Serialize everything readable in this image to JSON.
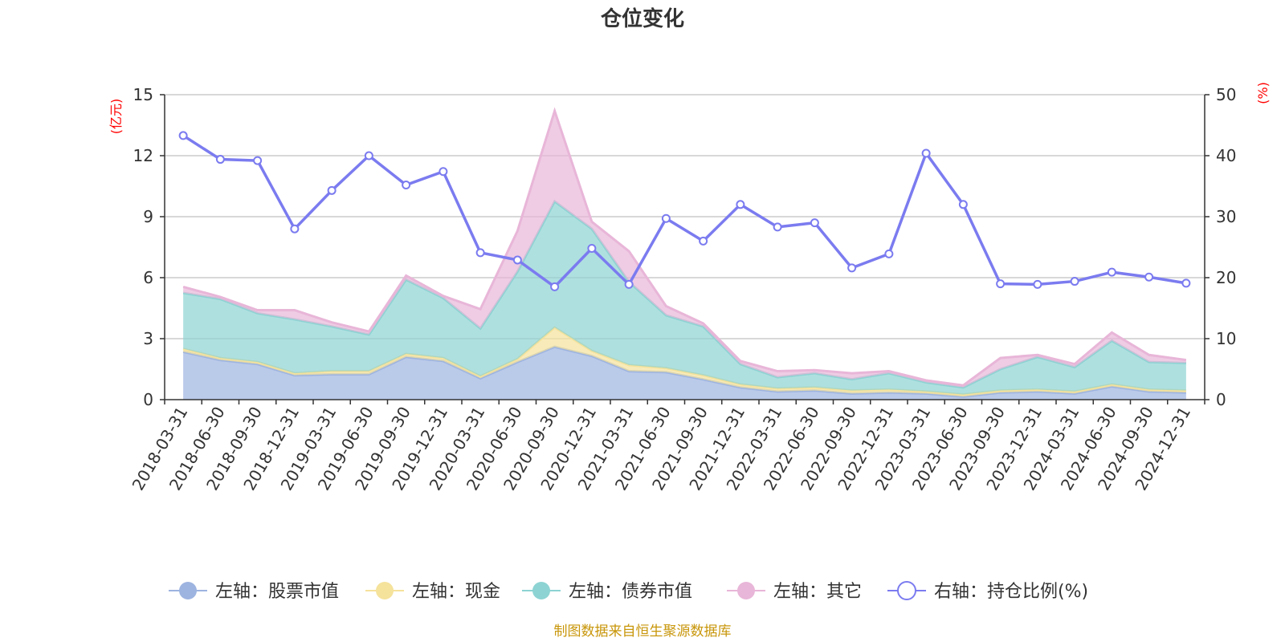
{
  "title": "仓位变化",
  "left_unit": "(亿元)",
  "right_unit": "(%)",
  "source": "制图数据来自恒生聚源数据库",
  "colors": {
    "stock": "#9db4e0",
    "cash": "#f5e29b",
    "bond": "#8dd3d3",
    "other": "#e8b6d8",
    "ratio": "#7b7bf0"
  },
  "chart_data": {
    "type": "area",
    "title": "仓位变化",
    "categories": [
      "2018-03-31",
      "2018-06-30",
      "2018-09-30",
      "2018-12-31",
      "2019-03-31",
      "2019-06-30",
      "2019-09-30",
      "2019-12-31",
      "2020-03-31",
      "2020-06-30",
      "2020-09-30",
      "2020-12-31",
      "2021-03-31",
      "2021-06-30",
      "2021-09-30",
      "2021-12-31",
      "2022-03-31",
      "2022-06-30",
      "2022-09-30",
      "2022-12-31",
      "2023-03-31",
      "2023-06-30",
      "2023-09-30",
      "2023-12-31",
      "2024-03-31",
      "2024-06-30",
      "2024-09-30",
      "2024-12-31"
    ],
    "left_axis": {
      "label": "(亿元)",
      "ylim": [
        0,
        15
      ],
      "ticks": [
        0,
        3,
        6,
        9,
        12,
        15
      ]
    },
    "right_axis": {
      "label": "(%)",
      "ylim": [
        0,
        50
      ],
      "ticks": [
        0,
        10,
        20,
        30,
        40,
        50
      ]
    },
    "series": [
      {
        "name": "左轴：股票市值",
        "key": "stock",
        "axis": "left",
        "type": "area",
        "values": [
          2.35,
          1.95,
          1.75,
          1.2,
          1.25,
          1.25,
          2.1,
          1.9,
          1.05,
          1.85,
          2.6,
          2.15,
          1.4,
          1.35,
          1.0,
          0.6,
          0.4,
          0.45,
          0.3,
          0.35,
          0.3,
          0.15,
          0.35,
          0.4,
          0.3,
          0.65,
          0.4,
          0.35
        ]
      },
      {
        "name": "左轴：现金",
        "key": "cash",
        "axis": "left",
        "type": "area",
        "values": [
          0.15,
          0.1,
          0.1,
          0.1,
          0.15,
          0.15,
          0.15,
          0.15,
          0.1,
          0.15,
          0.95,
          0.25,
          0.3,
          0.2,
          0.2,
          0.15,
          0.15,
          0.15,
          0.15,
          0.15,
          0.1,
          0.1,
          0.1,
          0.1,
          0.1,
          0.1,
          0.1,
          0.1
        ]
      },
      {
        "name": "左轴：债券市值",
        "key": "bond",
        "axis": "left",
        "type": "area",
        "values": [
          2.75,
          2.9,
          2.4,
          2.65,
          2.2,
          1.8,
          3.65,
          2.95,
          2.35,
          4.3,
          6.2,
          6.0,
          4.1,
          2.6,
          2.4,
          1.0,
          0.55,
          0.7,
          0.55,
          0.8,
          0.45,
          0.35,
          1.05,
          1.6,
          1.2,
          2.15,
          1.35,
          1.35
        ]
      },
      {
        "name": "左轴：其它",
        "key": "other",
        "axis": "left",
        "type": "area",
        "values": [
          0.3,
          0.1,
          0.15,
          0.45,
          0.2,
          0.15,
          0.2,
          0.1,
          0.95,
          2.0,
          4.45,
          0.35,
          1.5,
          0.45,
          0.15,
          0.15,
          0.3,
          0.15,
          0.3,
          0.1,
          0.1,
          0.1,
          0.55,
          0.1,
          0.15,
          0.4,
          0.35,
          0.15
        ]
      },
      {
        "name": "右轴：持仓比例(%)",
        "key": "ratio",
        "axis": "right",
        "type": "line",
        "values": [
          43.3,
          39.4,
          39.2,
          28.0,
          34.3,
          40.0,
          35.2,
          37.4,
          24.1,
          22.9,
          18.5,
          24.8,
          18.9,
          29.7,
          26.0,
          32.0,
          28.3,
          29.0,
          21.6,
          23.9,
          40.4,
          32.0,
          19.0,
          18.9,
          19.4,
          20.9,
          20.1,
          19.1
        ]
      }
    ],
    "legend_position": "bottom"
  }
}
